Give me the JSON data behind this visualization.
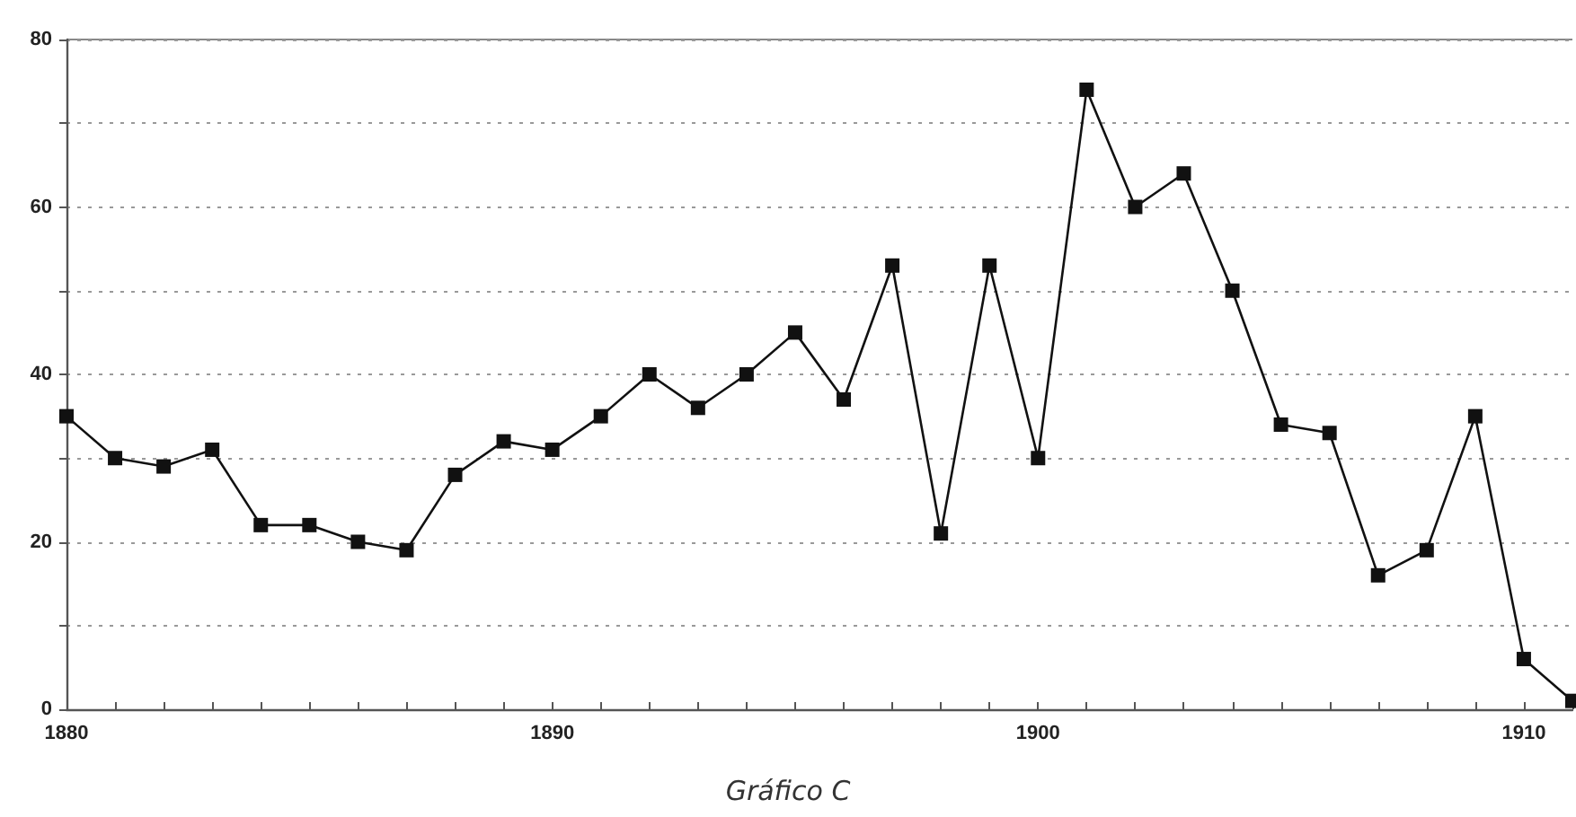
{
  "chart_data": {
    "type": "line",
    "title": "Gráfico C",
    "x": [
      1880,
      1881,
      1882,
      1883,
      1884,
      1885,
      1886,
      1887,
      1888,
      1889,
      1890,
      1891,
      1892,
      1893,
      1894,
      1895,
      1896,
      1897,
      1898,
      1899,
      1900,
      1901,
      1902,
      1903,
      1904,
      1905,
      1906,
      1907,
      1908,
      1909,
      1910,
      1911
    ],
    "series": [
      {
        "color": "#111111",
        "values": [
          35,
          30,
          29,
          31,
          22,
          22,
          20,
          19,
          28,
          32,
          31,
          35,
          40,
          36,
          40,
          45,
          37,
          53,
          21,
          53,
          30,
          74,
          60,
          64,
          50,
          34,
          33,
          16,
          19,
          35,
          6,
          1
        ]
      }
    ],
    "xlim": [
      1880,
      1911
    ],
    "xticks": [
      1880,
      {
        "value": 1881,
        "label": null
      },
      {
        "value": 1882,
        "label": null
      },
      {
        "value": 1883,
        "label": null
      },
      {
        "value": 1884,
        "label": null
      },
      {
        "value": 1885,
        "label": null
      },
      {
        "value": 1886,
        "label": null
      },
      {
        "value": 1887,
        "label": null
      },
      {
        "value": 1888,
        "label": null
      },
      {
        "value": 1889,
        "label": null
      },
      1890,
      {
        "value": 1891,
        "label": null
      },
      {
        "value": 1892,
        "label": null
      },
      {
        "value": 1893,
        "label": null
      },
      {
        "value": 1894,
        "label": null
      },
      {
        "value": 1895,
        "label": null
      },
      {
        "value": 1896,
        "label": null
      },
      {
        "value": 1897,
        "label": null
      },
      {
        "value": 1898,
        "label": null
      },
      {
        "value": 1899,
        "label": null
      },
      1900,
      {
        "value": 1901,
        "label": null
      },
      {
        "value": 1902,
        "label": null
      },
      {
        "value": 1903,
        "label": null
      },
      {
        "value": 1904,
        "label": null
      },
      {
        "value": 1905,
        "label": null
      },
      {
        "value": 1906,
        "label": null
      },
      {
        "value": 1907,
        "label": null
      },
      {
        "value": 1908,
        "label": null
      },
      {
        "value": 1909,
        "label": null
      },
      1910,
      {
        "value": 1911,
        "label": null
      }
    ],
    "ylim": [
      0,
      80
    ],
    "yticks": [
      0,
      {
        "value": 10,
        "label": null
      },
      20,
      {
        "value": 30,
        "label": null
      },
      40,
      {
        "value": 50,
        "label": null
      },
      60,
      {
        "value": 70,
        "label": null
      },
      80
    ],
    "grid": "y",
    "marker": "square",
    "line_style": "solid"
  }
}
